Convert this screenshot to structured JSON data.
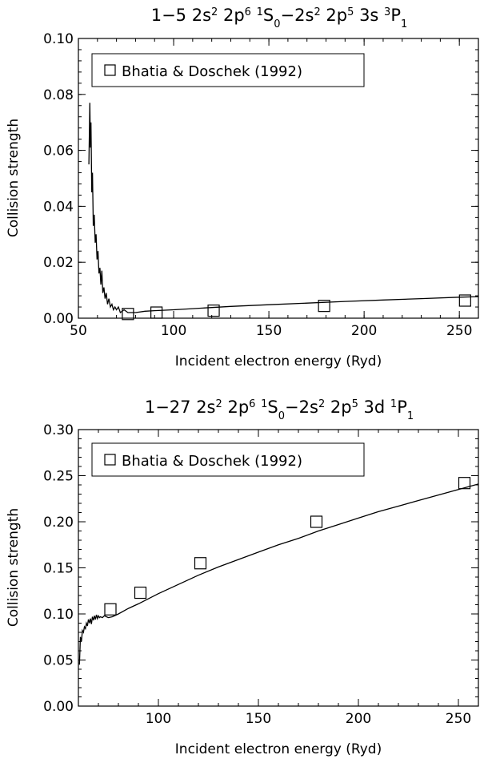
{
  "chart_data": [
    {
      "type": "line",
      "title": "1−5 2s2 2p6 1S0−2s2 2p5 3s 3P1",
      "title_parts": {
        "prefix": "1−5 2s",
        "sup1": "2",
        "mid1": " 2p",
        "sup2": "6",
        "mid2": " ",
        "sup3": "1",
        "mid3": "S",
        "sub1": "0",
        "mid4": "−2s",
        "sup4": "2",
        "mid5": " 2p",
        "sup5": "5",
        "mid6": " 3s ",
        "sup6": "3",
        "mid7": "P",
        "sub2": "1"
      },
      "xlabel": "Incident electron energy (Ryd)",
      "ylabel": "Collision strength",
      "xlim": [
        50,
        260
      ],
      "ylim": [
        0,
        0.1
      ],
      "xticks": [
        "50",
        "100",
        "150",
        "200",
        "250"
      ],
      "xtick_values": [
        50,
        100,
        150,
        200,
        250
      ],
      "yticks": [
        "0.00",
        "0.02",
        "0.04",
        "0.06",
        "0.08",
        "0.10"
      ],
      "ytick_values": [
        0,
        0.02,
        0.04,
        0.06,
        0.08,
        0.1
      ],
      "legend": {
        "label": "Bhatia & Doschek (1992)",
        "position": "top-left"
      },
      "series": [
        {
          "style": "line",
          "x": [
            55.5,
            56.0,
            56.3,
            56.6,
            57.0,
            57.4,
            57.8,
            58.3,
            58.8,
            59.3,
            59.8,
            60.3,
            60.8,
            61.3,
            61.8,
            62.3,
            62.8,
            63.4,
            64.0,
            64.6,
            65.3,
            66.0,
            66.8,
            67.6,
            68.4,
            69.2,
            70.0,
            71.0,
            72.0,
            74.0,
            76.0,
            80.0,
            85.0,
            90.0,
            100.0,
            110.0,
            120.0,
            130.0,
            150.0,
            170.0,
            190.0,
            210.0,
            230.0,
            250.0,
            260.0
          ],
          "y": [
            0.055,
            0.077,
            0.061,
            0.07,
            0.045,
            0.052,
            0.033,
            0.037,
            0.027,
            0.03,
            0.021,
            0.024,
            0.016,
            0.018,
            0.012,
            0.017,
            0.009,
            0.011,
            0.007,
            0.009,
            0.005,
            0.007,
            0.004,
            0.005,
            0.003,
            0.004,
            0.003,
            0.004,
            0.002,
            0.003,
            0.002,
            0.002,
            0.0025,
            0.0027,
            0.003,
            0.0034,
            0.0038,
            0.0042,
            0.0048,
            0.0054,
            0.006,
            0.0065,
            0.007,
            0.0075,
            0.0077
          ]
        },
        {
          "name": "Bhatia & Doschek (1992)",
          "style": "square-markers",
          "x": [
            76,
            91,
            121,
            179,
            253
          ],
          "y": [
            0.0015,
            0.002,
            0.0027,
            0.0044,
            0.0063
          ]
        }
      ]
    },
    {
      "type": "line",
      "title": "1−27 2s2 2p6 1S0−2s2 2p5 3d 1P1",
      "title_parts": {
        "prefix": "1−27 2s",
        "sup1": "2",
        "mid1": " 2p",
        "sup2": "6",
        "mid2": " ",
        "sup3": "1",
        "mid3": "S",
        "sub1": "0",
        "mid4": "−2s",
        "sup4": "2",
        "mid5": " 2p",
        "sup5": "5",
        "mid6": " 3d ",
        "sup6": "1",
        "mid7": "P",
        "sub2": "1"
      },
      "xlabel": "Incident electron energy (Ryd)",
      "ylabel": "Collision strength",
      "xlim": [
        60,
        260
      ],
      "ylim": [
        0,
        0.3
      ],
      "xticks": [
        "100",
        "150",
        "200",
        "250"
      ],
      "xtick_values": [
        100,
        150,
        200,
        250
      ],
      "yticks": [
        "0.00",
        "0.05",
        "0.10",
        "0.15",
        "0.20",
        "0.25",
        "0.30"
      ],
      "ytick_values": [
        0,
        0.05,
        0.1,
        0.15,
        0.2,
        0.25,
        0.3
      ],
      "legend": {
        "label": "Bhatia & Doschek (1992)",
        "position": "top-left"
      },
      "series": [
        {
          "style": "line",
          "x": [
            60.5,
            61.0,
            61.5,
            62.0,
            62.5,
            63.0,
            63.5,
            64.0,
            64.5,
            65.0,
            65.5,
            66.0,
            66.5,
            67.0,
            67.5,
            68.0,
            68.5,
            69.0,
            69.5,
            70.0,
            70.5,
            71.0,
            72.0,
            73.0,
            74.0,
            75.0,
            77.0,
            80.0,
            85.0,
            90.0,
            100.0,
            110.0,
            120.0,
            130.0,
            140.0,
            150.0,
            160.0,
            170.0,
            180.0,
            190.0,
            200.0,
            210.0,
            220.0,
            230.0,
            240.0,
            250.0,
            260.0
          ],
          "y": [
            0.045,
            0.075,
            0.07,
            0.082,
            0.08,
            0.086,
            0.084,
            0.09,
            0.087,
            0.094,
            0.09,
            0.095,
            0.089,
            0.097,
            0.093,
            0.098,
            0.094,
            0.099,
            0.095,
            0.098,
            0.096,
            0.097,
            0.096,
            0.098,
            0.097,
            0.096,
            0.097,
            0.1,
            0.106,
            0.111,
            0.122,
            0.132,
            0.142,
            0.151,
            0.159,
            0.167,
            0.175,
            0.182,
            0.19,
            0.197,
            0.204,
            0.211,
            0.217,
            0.223,
            0.229,
            0.235,
            0.241
          ]
        },
        {
          "name": "Bhatia & Doschek (1992)",
          "style": "square-markers",
          "x": [
            76,
            91,
            121,
            179,
            253
          ],
          "y": [
            0.105,
            0.123,
            0.155,
            0.2,
            0.242
          ]
        }
      ]
    }
  ]
}
